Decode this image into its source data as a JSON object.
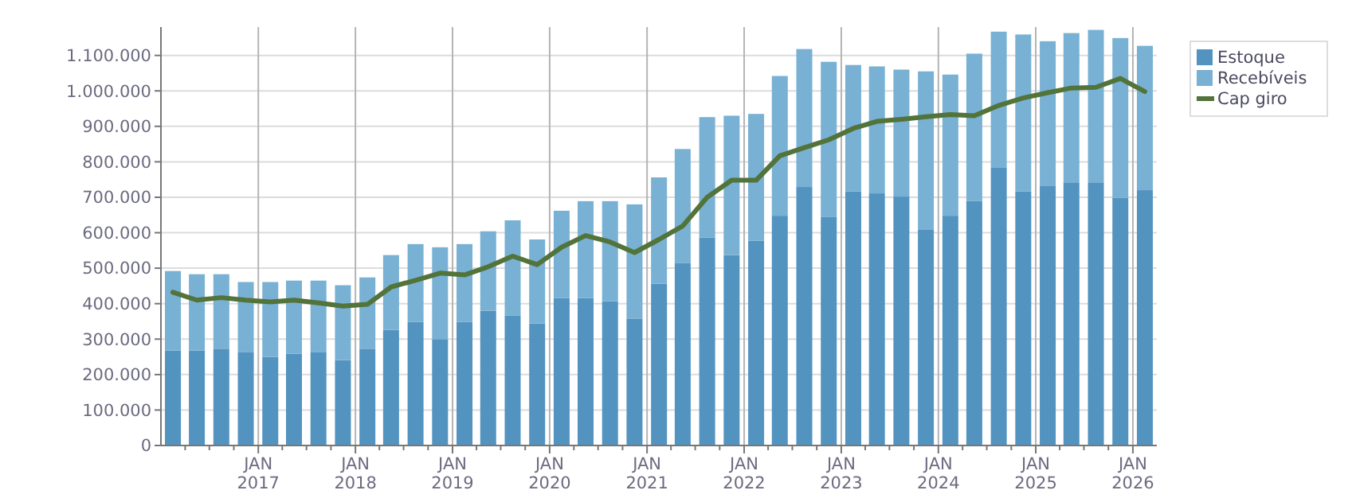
{
  "chart_data": {
    "type": "bar",
    "stacked": true,
    "grid": true,
    "legend": "top right",
    "x": [
      "2016-02-15",
      "2016-05-15",
      "2016-08-15",
      "2016-11-15",
      "2017-02-15",
      "2017-05-15",
      "2017-08-15",
      "2017-11-15",
      "2018-02-15",
      "2018-05-15",
      "2018-08-15",
      "2018-11-15",
      "2019-02-15",
      "2019-05-15",
      "2019-08-15",
      "2019-11-15",
      "2020-02-15",
      "2020-05-15",
      "2020-08-15",
      "2020-11-15",
      "2021-02-15",
      "2021-05-15",
      "2021-08-15",
      "2021-11-15",
      "2022-02-15",
      "2022-05-15",
      "2022-08-15",
      "2022-11-15",
      "2023-02-15",
      "2023-05-15",
      "2023-08-15",
      "2023-11-15",
      "2024-02-15",
      "2024-05-15",
      "2024-08-15",
      "2024-11-15",
      "2025-02-15",
      "2025-05-15",
      "2025-08-15",
      "2025-11-15",
      "2026-02-15"
    ],
    "xlim": [
      "2016-01-01",
      "2026-04-01"
    ],
    "xticks": [
      {
        "value": "2016-04-01",
        "label": null
      },
      {
        "value": "2016-07-01",
        "label": null
      },
      {
        "value": "2016-10-01",
        "label": null
      },
      {
        "value": "2017-01-01",
        "label": "JAN 2017"
      },
      {
        "value": "2017-04-01",
        "label": null
      },
      {
        "value": "2017-07-01",
        "label": null
      },
      {
        "value": "2017-10-01",
        "label": null
      },
      {
        "value": "2018-01-01",
        "label": "JAN 2018"
      },
      {
        "value": "2018-04-01",
        "label": null
      },
      {
        "value": "2018-07-01",
        "label": null
      },
      {
        "value": "2018-10-01",
        "label": null
      },
      {
        "value": "2019-01-01",
        "label": "JAN 2019"
      },
      {
        "value": "2019-04-01",
        "label": null
      },
      {
        "value": "2019-07-01",
        "label": null
      },
      {
        "value": "2019-10-01",
        "label": null
      },
      {
        "value": "2020-01-01",
        "label": "JAN 2020"
      },
      {
        "value": "2020-04-01",
        "label": null
      },
      {
        "value": "2020-07-01",
        "label": null
      },
      {
        "value": "2020-10-01",
        "label": null
      },
      {
        "value": "2021-01-01",
        "label": "JAN 2021"
      },
      {
        "value": "2021-04-01",
        "label": null
      },
      {
        "value": "2021-07-01",
        "label": null
      },
      {
        "value": "2021-10-01",
        "label": null
      },
      {
        "value": "2022-01-01",
        "label": "JAN 2022"
      },
      {
        "value": "2022-04-01",
        "label": null
      },
      {
        "value": "2022-07-01",
        "label": null
      },
      {
        "value": "2022-10-01",
        "label": null
      },
      {
        "value": "2023-01-01",
        "label": "JAN 2023"
      },
      {
        "value": "2023-04-01",
        "label": null
      },
      {
        "value": "2023-07-01",
        "label": null
      },
      {
        "value": "2023-10-01",
        "label": null
      },
      {
        "value": "2024-01-01",
        "label": "JAN 2024"
      },
      {
        "value": "2024-04-01",
        "label": null
      },
      {
        "value": "2024-07-01",
        "label": null
      },
      {
        "value": "2024-10-01",
        "label": null
      },
      {
        "value": "2025-01-01",
        "label": "JAN 2025"
      },
      {
        "value": "2025-04-01",
        "label": null
      },
      {
        "value": "2025-07-01",
        "label": null
      },
      {
        "value": "2025-10-01",
        "label": null
      },
      {
        "value": "2026-01-01",
        "label": "JAN 2026"
      }
    ],
    "ylim": [
      0,
      1180000
    ],
    "yticks": [
      {
        "value": 0,
        "label": "0"
      },
      {
        "value": 100000,
        "label": "100.000"
      },
      {
        "value": 200000,
        "label": "200.000"
      },
      {
        "value": 300000,
        "label": "300.000"
      },
      {
        "value": 400000,
        "label": "400.000"
      },
      {
        "value": 500000,
        "label": "500.000"
      },
      {
        "value": 600000,
        "label": "600.000"
      },
      {
        "value": 700000,
        "label": "700.000"
      },
      {
        "value": 800000,
        "label": "800.000"
      },
      {
        "value": 900000,
        "label": "900.000"
      },
      {
        "value": 1000000,
        "label": "1.000.000"
      },
      {
        "value": 1100000,
        "label": "1.100.000"
      }
    ],
    "series": [
      {
        "name": "Estoque",
        "color": "#5393c0",
        "values": [
          268000,
          268000,
          273000,
          264000,
          250000,
          259000,
          264000,
          241000,
          273000,
          326000,
          349000,
          300000,
          349000,
          380000,
          367000,
          344000,
          416000,
          416000,
          407000,
          358000,
          456000,
          514000,
          586000,
          537000,
          577000,
          648000,
          729000,
          644000,
          716000,
          711000,
          702000,
          608000,
          648000,
          689000,
          783000,
          716000,
          733000,
          742000,
          742000,
          698000,
          720000
        ]
      },
      {
        "name": "Recebíveis",
        "color": "#78b1d3",
        "values": [
          224000,
          215000,
          210000,
          197000,
          211000,
          206000,
          201000,
          211000,
          201000,
          211000,
          219000,
          259000,
          219000,
          224000,
          268000,
          237000,
          246000,
          273000,
          282000,
          322000,
          300000,
          322000,
          340000,
          393000,
          358000,
          394000,
          389000,
          438000,
          357000,
          358000,
          358000,
          447000,
          398000,
          416000,
          384000,
          443000,
          407000,
          421000,
          430000,
          451000,
          407000
        ]
      },
      {
        "name": "Cap giro",
        "type": "line",
        "color": "#52733a",
        "line_style": "solid",
        "marker": "none",
        "values": [
          432000,
          410000,
          417000,
          410000,
          405000,
          410000,
          402000,
          393000,
          398000,
          447000,
          466000,
          486000,
          481000,
          504000,
          534000,
          510000,
          559000,
          592000,
          574000,
          544000,
          581000,
          619000,
          700000,
          748000,
          748000,
          817000,
          840000,
          862000,
          894000,
          914000,
          920000,
          927000,
          933000,
          930000,
          959000,
          980000,
          995000,
          1008000,
          1010000,
          1035000,
          998000
        ]
      }
    ]
  }
}
